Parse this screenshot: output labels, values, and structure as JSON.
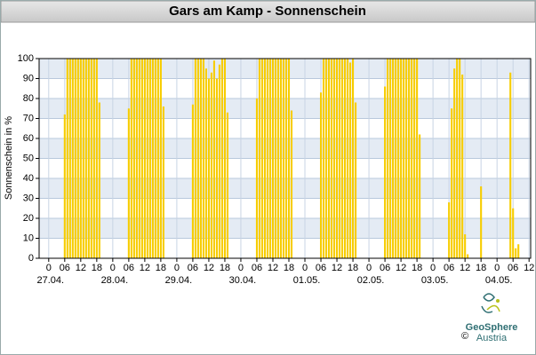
{
  "chart_data": {
    "type": "bar",
    "title": "Gars am Kamp - Sonnenschein",
    "y_label": "Sonnenschein in %",
    "color": "#f7cd00",
    "grid": true,
    "x": [
      6,
      7,
      8,
      9,
      10,
      11,
      12,
      13,
      14,
      15,
      16,
      17,
      18,
      19,
      30,
      31,
      32,
      33,
      34,
      35,
      36,
      37,
      38,
      39,
      40,
      41,
      42,
      43,
      54,
      55,
      56,
      57,
      58,
      59,
      60,
      61,
      62,
      63,
      64,
      65,
      66,
      67,
      78,
      79,
      80,
      81,
      82,
      83,
      84,
      85,
      86,
      87,
      88,
      89,
      90,
      91,
      102,
      103,
      104,
      105,
      106,
      107,
      108,
      109,
      110,
      111,
      112,
      113,
      114,
      115,
      126,
      127,
      128,
      129,
      130,
      131,
      132,
      133,
      134,
      135,
      136,
      137,
      138,
      139,
      150,
      151,
      152,
      153,
      154,
      155,
      156,
      157,
      162,
      173,
      174,
      175,
      176
    ],
    "values": [
      72,
      100,
      100,
      100,
      100,
      100,
      100,
      100,
      100,
      100,
      100,
      100,
      100,
      78,
      75,
      100,
      100,
      100,
      100,
      100,
      100,
      100,
      100,
      100,
      100,
      100,
      100,
      76,
      77,
      100,
      100,
      100,
      100,
      95,
      90,
      93,
      99,
      90,
      97,
      100,
      100,
      73,
      80,
      100,
      100,
      100,
      100,
      100,
      100,
      100,
      100,
      100,
      100,
      100,
      100,
      74,
      83,
      100,
      100,
      100,
      100,
      100,
      100,
      100,
      100,
      100,
      100,
      98,
      100,
      78,
      86,
      100,
      100,
      100,
      100,
      100,
      100,
      100,
      100,
      100,
      100,
      100,
      100,
      62,
      28,
      75,
      95,
      100,
      100,
      92,
      12,
      2,
      36,
      93,
      25,
      5,
      7
    ],
    "xlim": [
      -3.6,
      180.6
    ],
    "ylim": [
      0,
      100
    ],
    "yticks": [
      0,
      10,
      20,
      30,
      40,
      50,
      60,
      70,
      80,
      90,
      100
    ],
    "xticks": [
      {
        "value": 0,
        "label": "0"
      },
      {
        "value": 6,
        "label": "06"
      },
      {
        "value": 12,
        "label": "12"
      },
      {
        "value": 18,
        "label": "18"
      },
      {
        "value": 24,
        "label": "0"
      },
      {
        "value": 30,
        "label": "06"
      },
      {
        "value": 36,
        "label": "12"
      },
      {
        "value": 42,
        "label": "18"
      },
      {
        "value": 48,
        "label": "0"
      },
      {
        "value": 54,
        "label": "06"
      },
      {
        "value": 60,
        "label": "12"
      },
      {
        "value": 66,
        "label": "18"
      },
      {
        "value": 72,
        "label": "0"
      },
      {
        "value": 78,
        "label": "06"
      },
      {
        "value": 84,
        "label": "12"
      },
      {
        "value": 90,
        "label": "18"
      },
      {
        "value": 96,
        "label": "0"
      },
      {
        "value": 102,
        "label": "06"
      },
      {
        "value": 108,
        "label": "12"
      },
      {
        "value": 114,
        "label": "18"
      },
      {
        "value": 120,
        "label": "0"
      },
      {
        "value": 126,
        "label": "06"
      },
      {
        "value": 132,
        "label": "12"
      },
      {
        "value": 138,
        "label": "18"
      },
      {
        "value": 144,
        "label": "0"
      },
      {
        "value": 150,
        "label": "06"
      },
      {
        "value": 156,
        "label": "12"
      },
      {
        "value": 162,
        "label": "18"
      },
      {
        "value": 168,
        "label": "0"
      },
      {
        "value": 174,
        "label": "06"
      },
      {
        "value": 180,
        "label": "12"
      }
    ],
    "date_labels": [
      {
        "value": 0,
        "label": "27.04."
      },
      {
        "value": 24,
        "label": "28.04."
      },
      {
        "value": 48,
        "label": "29.04."
      },
      {
        "value": 72,
        "label": "30.04."
      },
      {
        "value": 96,
        "label": "01.05."
      },
      {
        "value": 120,
        "label": "02.05."
      },
      {
        "value": 144,
        "label": "03.05."
      },
      {
        "value": 168,
        "label": "04.05."
      }
    ]
  },
  "footer": {
    "brand": "GeoSphere",
    "country": "Austria",
    "copyright": "©"
  }
}
